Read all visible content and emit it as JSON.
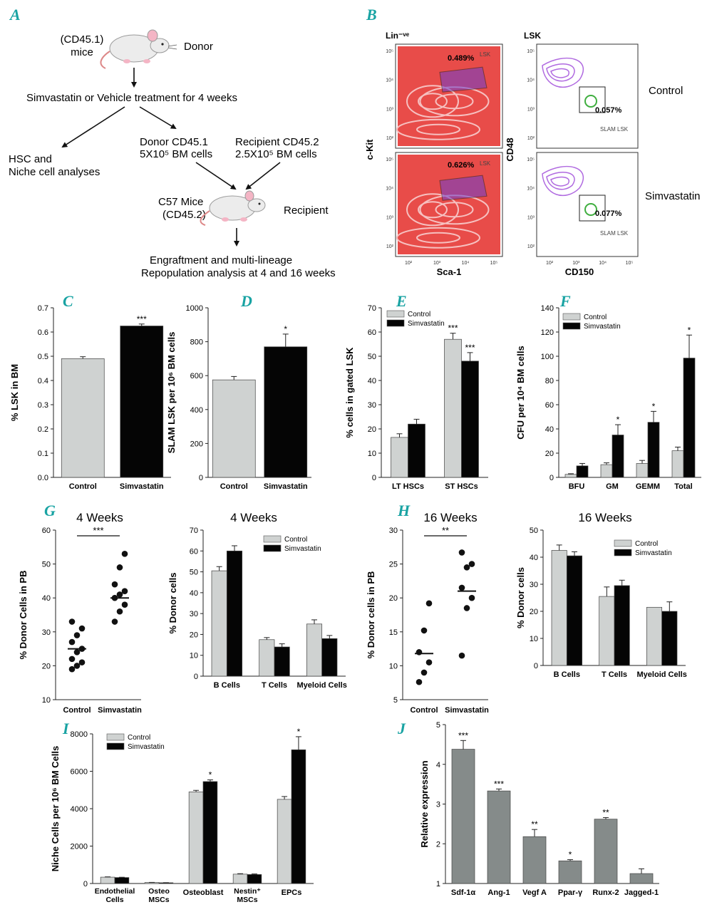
{
  "figure": {
    "colors": {
      "panel_label": "#19a3a3",
      "control_bar": "#cfd2d1",
      "simva_bar": "#050505",
      "j_bar": "#858b8a",
      "contour": "#e53935",
      "gate_lsk": "#6a3fd0",
      "gate_slam": "#3fae3f"
    },
    "panelA": {
      "label": "A",
      "donor_line1": "(CD45.1)",
      "donor_line2": "mice",
      "donor": "Donor",
      "treatment": "Simvastatin or Vehicle treatment for 4 weeks",
      "hsc_line1": "HSC and",
      "hsc_line2": "Niche cell analyses",
      "donor_cells_line1": "Donor CD45.1",
      "donor_cells_line2": "5X10⁵ BM cells",
      "recip_cells_line1": "Recipient CD45.2",
      "recip_cells_line2": "2.5X10⁵ BM cells",
      "c57_line1": "C57 Mice",
      "c57_line2": "(CD45.2)",
      "recipient": "Recipient",
      "eng_line1": "Engraftment and multi-lineage",
      "eng_line2": "Repopulation analysis at 4 and 16 weeks",
      "mouse_icon": "mouse-icon"
    },
    "panelB": {
      "label": "B",
      "lin_title": "Lin⁻ᵛᵉ",
      "lsk_title": "LSK",
      "ylabel_left": "c-Kit",
      "xlabel_left": "Sca-1",
      "ylabel_right": "CD48",
      "xlabel_right": "CD150",
      "row_control": "Control",
      "row_simva": "Simvastatin",
      "gate_lsk": "LSK",
      "gate_slam": "SLAM LSK",
      "pct_control_lsk": "0.489%",
      "pct_simva_lsk": "0.626%",
      "pct_control_slam": "0.057%",
      "pct_simva_slam": "0.077%",
      "tick_labels": [
        "10²",
        "10³",
        "10⁴",
        "10⁵"
      ]
    },
    "panels_text": {
      "C": "C",
      "D": "D",
      "E": "E",
      "F": "F",
      "G": "G",
      "H": "H",
      "I": "I",
      "J": "J",
      "week4": "4 Weeks",
      "week16": "16 Weeks"
    }
  },
  "chart_data": [
    {
      "id": "C",
      "type": "bar",
      "categories": [
        "Control",
        "Simvastatin"
      ],
      "values": [
        0.49,
        0.625
      ],
      "errors": [
        0.008,
        0.008
      ],
      "significance": [
        "",
        "***"
      ],
      "ylabel": "% LSK in BM",
      "ylim": [
        0,
        0.7
      ],
      "yticks": [
        "0.0",
        "0.1",
        "0.2",
        "0.3",
        "0.4",
        "0.5",
        "0.6",
        "0.7"
      ]
    },
    {
      "id": "D",
      "type": "bar",
      "categories": [
        "Control",
        "Simvastatin"
      ],
      "values": [
        575,
        770
      ],
      "errors": [
        20,
        75
      ],
      "significance": [
        "",
        "*"
      ],
      "ylabel": "SLAM LSK per 10⁶ BM cells",
      "ylim": [
        0,
        1000
      ],
      "yticks": [
        "0",
        "200",
        "400",
        "600",
        "800",
        "1000"
      ]
    },
    {
      "id": "E",
      "type": "bar",
      "categories": [
        "LT HSCs",
        "ST HSCs"
      ],
      "legend": [
        "Control",
        "Simvastatin"
      ],
      "series": [
        {
          "name": "Control",
          "values": [
            16.5,
            57
          ],
          "errors": [
            1.5,
            2.5
          ]
        },
        {
          "name": "Simvastatin",
          "values": [
            22,
            48
          ],
          "errors": [
            2,
            3.5
          ]
        }
      ],
      "significance": [
        [
          "",
          "***"
        ],
        [
          "",
          "***"
        ]
      ],
      "ylabel": "% cells in gated LSK",
      "ylim": [
        0,
        70
      ],
      "yticks": [
        "0",
        "10",
        "20",
        "30",
        "40",
        "50",
        "60",
        "70"
      ]
    },
    {
      "id": "F",
      "type": "bar",
      "categories": [
        "BFU",
        "GM",
        "GEMM",
        "Total"
      ],
      "legend": [
        "Control",
        "Simvastatin"
      ],
      "series": [
        {
          "name": "Control",
          "values": [
            2.5,
            10.5,
            11.5,
            22
          ],
          "errors": [
            0.5,
            1.5,
            2.5,
            3
          ]
        },
        {
          "name": "Simvastatin",
          "values": [
            9.5,
            35,
            45.5,
            98.5
          ],
          "errors": [
            2,
            8.5,
            9,
            19
          ]
        }
      ],
      "significance": [
        [
          "",
          "",
          "",
          ""
        ],
        [
          "",
          "*",
          "*",
          "*"
        ]
      ],
      "ylabel": "CFU per 10⁴ BM cells",
      "ylim": [
        0,
        140
      ],
      "yticks": [
        "0",
        "20",
        "40",
        "60",
        "80",
        "100",
        "120",
        "140"
      ]
    },
    {
      "id": "G1",
      "type": "scatter",
      "title": "4 Weeks",
      "categories": [
        "Control",
        "Simvastatin"
      ],
      "points": [
        [
          19,
          20,
          21,
          22,
          24,
          25,
          27,
          29,
          31,
          33
        ],
        [
          33,
          36,
          38,
          40,
          41,
          42,
          44,
          49,
          53
        ]
      ],
      "means": [
        25,
        40
      ],
      "significance": "***",
      "ylabel": "% Donor Cells in PB",
      "ylim": [
        10,
        60
      ],
      "yticks": [
        "10",
        "20",
        "30",
        "40",
        "50",
        "60"
      ]
    },
    {
      "id": "G2",
      "type": "bar",
      "title": "4 Weeks",
      "categories": [
        "B Cells",
        "T Cells",
        "Myeloid Cells"
      ],
      "legend": [
        "Control",
        "Simvastatin"
      ],
      "series": [
        {
          "name": "Control",
          "values": [
            50.5,
            17.5,
            25
          ],
          "errors": [
            2,
            1,
            2
          ]
        },
        {
          "name": "Simvastatin",
          "values": [
            60,
            14,
            18
          ],
          "errors": [
            2.5,
            1.5,
            1.5
          ]
        }
      ],
      "ylabel": "% Donor cells",
      "ylim": [
        0,
        70
      ],
      "yticks": [
        "0",
        "10",
        "20",
        "30",
        "40",
        "50",
        "60",
        "70"
      ]
    },
    {
      "id": "H1",
      "type": "scatter",
      "title": "16 Weeks",
      "categories": [
        "Control",
        "Simvastatin"
      ],
      "points": [
        [
          7.6,
          9,
          10.5,
          12,
          15.2,
          19.2
        ],
        [
          11.5,
          18.5,
          20,
          21.5,
          24.5,
          25,
          26.7
        ]
      ],
      "means": [
        11.8,
        21
      ],
      "significance": "**",
      "ylabel": "% Donor cells in PB",
      "ylim": [
        5,
        30
      ],
      "yticks": [
        "5",
        "10",
        "15",
        "20",
        "25",
        "30"
      ]
    },
    {
      "id": "H2",
      "type": "bar",
      "title": "16 Weeks",
      "categories": [
        "B Cells",
        "T Cells",
        "Myeloid Cells"
      ],
      "legend": [
        "Control",
        "Simvastatin"
      ],
      "series": [
        {
          "name": "Control",
          "values": [
            42.5,
            25.5,
            21.5
          ],
          "errors": [
            2,
            3.5,
            0
          ]
        },
        {
          "name": "Simvastatin",
          "values": [
            40.5,
            29.5,
            20
          ],
          "errors": [
            1.5,
            2,
            3.5
          ]
        }
      ],
      "ylabel": "% Donor cells",
      "ylim": [
        0,
        50
      ],
      "yticks": [
        "0",
        "10",
        "20",
        "30",
        "40",
        "50"
      ]
    },
    {
      "id": "I",
      "type": "bar",
      "categories": [
        "Endothelial Cells",
        "Osteo MSCs",
        "Osteoblast",
        "Nestin⁺ MSCs",
        "EPCs"
      ],
      "legend": [
        "Control",
        "Simvastatin"
      ],
      "series": [
        {
          "name": "Control",
          "values": [
            340,
            55,
            4900,
            500,
            4500
          ],
          "errors": [
            15,
            5,
            80,
            25,
            150
          ]
        },
        {
          "name": "Simvastatin",
          "values": [
            320,
            40,
            5450,
            480,
            7150
          ],
          "errors": [
            15,
            5,
            90,
            30,
            700
          ]
        }
      ],
      "significance": [
        [
          "",
          "",
          "",
          "",
          ""
        ],
        [
          "",
          "",
          "*",
          "",
          "*"
        ]
      ],
      "ylabel": "Niche Cells per 10⁶ BM Cells",
      "ylim": [
        0,
        8000
      ],
      "yticks": [
        "0",
        "2000",
        "4000",
        "6000",
        "8000"
      ]
    },
    {
      "id": "J",
      "type": "bar",
      "categories": [
        "Sdf-1α",
        "Ang-1",
        "Vegf A",
        "Ppar-γ",
        "Runx-2",
        "Jagged-1"
      ],
      "values": [
        4.38,
        3.33,
        2.18,
        1.57,
        2.62,
        1.25
      ],
      "errors": [
        0.22,
        0.05,
        0.18,
        0.03,
        0.04,
        0.12
      ],
      "significance": [
        "***",
        "***",
        "**",
        "*",
        "**",
        ""
      ],
      "ylabel": "Relative expression",
      "ylim": [
        1,
        5
      ],
      "yticks": [
        "1",
        "2",
        "3",
        "4",
        "5"
      ]
    }
  ]
}
